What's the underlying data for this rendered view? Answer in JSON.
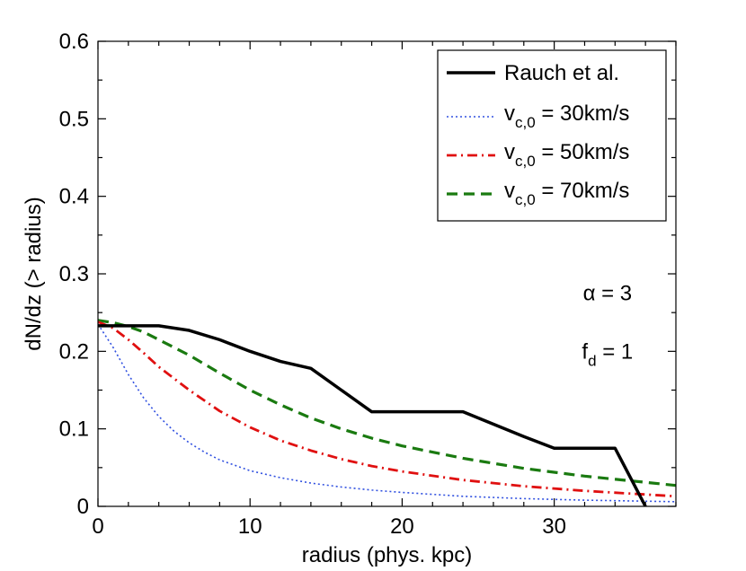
{
  "chart_data": {
    "type": "line",
    "title": "",
    "xlabel": "radius (phys. kpc)",
    "ylabel": "dN/dz (> radius)",
    "xlim": [
      0,
      38
    ],
    "ylim": [
      0,
      0.6
    ],
    "x_ticks": [
      0,
      10,
      20,
      30
    ],
    "x_tick_labels": [
      "0",
      "10",
      "20",
      "30"
    ],
    "y_ticks": [
      0,
      0.1,
      0.2,
      0.3,
      0.4,
      0.5,
      0.6
    ],
    "y_tick_labels": [
      "0",
      "0.1",
      "0.2",
      "0.3",
      "0.4",
      "0.5",
      "0.6"
    ],
    "grid": false,
    "legend_position": "top-right",
    "series": [
      {
        "name": "Rauch et al.",
        "label_main": "Rauch et al.",
        "label_sub": "",
        "label_rest": "",
        "color": "#000000",
        "dash": "solid",
        "width": 3.5,
        "x": [
          0,
          4,
          6,
          8,
          10,
          12,
          14,
          16,
          18,
          24,
          28,
          30,
          34,
          36
        ],
        "y": [
          0.233,
          0.233,
          0.227,
          0.215,
          0.2,
          0.187,
          0.178,
          0.15,
          0.122,
          0.122,
          0.09,
          0.075,
          0.075,
          0.0
        ]
      },
      {
        "name": "v_c,0 = 30km/s",
        "label_main": "v",
        "label_sub": "c,0",
        "label_rest": " = 30km/s",
        "color": "#3050e0",
        "dash": "dotted",
        "width": 1.6,
        "x": [
          0,
          1,
          2,
          3,
          4,
          5,
          6,
          7,
          8,
          10,
          12,
          14,
          16,
          18,
          20,
          24,
          28,
          32,
          38
        ],
        "y": [
          0.235,
          0.205,
          0.17,
          0.14,
          0.116,
          0.097,
          0.082,
          0.07,
          0.06,
          0.046,
          0.037,
          0.03,
          0.025,
          0.021,
          0.018,
          0.013,
          0.01,
          0.008,
          0.006
        ]
      },
      {
        "name": "v_c,0 = 50km/s",
        "label_main": "v",
        "label_sub": "c,0",
        "label_rest": " = 50km/s",
        "color": "#e01010",
        "dash": "dashdot",
        "width": 2.8,
        "x": [
          0,
          1,
          2,
          3,
          4,
          6,
          8,
          10,
          12,
          14,
          16,
          18,
          20,
          24,
          28,
          32,
          38
        ],
        "y": [
          0.238,
          0.23,
          0.215,
          0.198,
          0.18,
          0.15,
          0.123,
          0.102,
          0.085,
          0.072,
          0.061,
          0.052,
          0.045,
          0.034,
          0.026,
          0.02,
          0.013
        ]
      },
      {
        "name": "v_c,0 = 70km/s",
        "label_main": "v",
        "label_sub": "c,0",
        "label_rest": " = 70km/s",
        "color": "#1a7a10",
        "dash": "dashed",
        "width": 3.2,
        "x": [
          0,
          1,
          2,
          3,
          4,
          6,
          8,
          10,
          12,
          14,
          16,
          18,
          20,
          24,
          28,
          32,
          38
        ],
        "y": [
          0.24,
          0.237,
          0.232,
          0.225,
          0.215,
          0.195,
          0.172,
          0.15,
          0.131,
          0.114,
          0.1,
          0.088,
          0.078,
          0.062,
          0.049,
          0.039,
          0.027
        ]
      }
    ],
    "annotations": [
      {
        "main": "α = 3",
        "sub": "",
        "rest": "",
        "x": 33.5,
        "y": 0.275
      },
      {
        "main": "f",
        "sub": "d",
        "rest": " = 1",
        "x": 33.5,
        "y": 0.2
      }
    ]
  }
}
